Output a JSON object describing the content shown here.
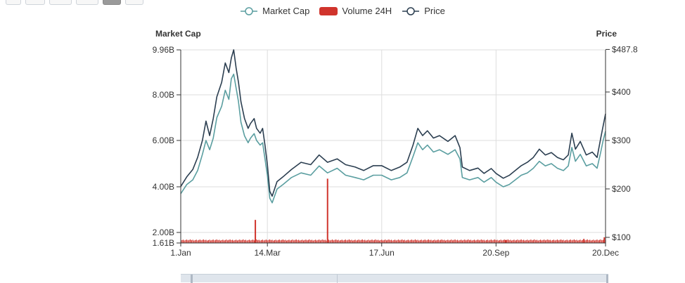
{
  "zoom_buttons": [
    {
      "name": "zoom-button-1",
      "width": 22,
      "active": false
    },
    {
      "name": "zoom-button-2",
      "width": 28,
      "active": false
    },
    {
      "name": "zoom-button-3",
      "width": 32,
      "active": false
    },
    {
      "name": "zoom-button-4",
      "width": 32,
      "active": false
    },
    {
      "name": "zoom-button-5",
      "width": 26,
      "active": true
    },
    {
      "name": "zoom-button-6",
      "width": 26,
      "active": false
    }
  ],
  "legend": {
    "market_cap": "Market Cap",
    "volume": "Volume 24H",
    "price": "Price"
  },
  "colors": {
    "market_cap": "#5a9ea0",
    "volume": "#d0342c",
    "price": "#2b3e50",
    "grid": "#dddddd",
    "axis": "#333333"
  },
  "chart_data": {
    "type": "line",
    "left_axis": {
      "title": "Market Cap",
      "ticks": [
        "9.96B",
        "8.00B",
        "6.00B",
        "4.00B",
        "2.00B",
        "1.61B"
      ],
      "tick_values": [
        9.96,
        8.0,
        6.0,
        4.0,
        2.0,
        1.61
      ],
      "ylim": [
        1.61,
        9.96
      ]
    },
    "right_axis": {
      "title": "Price",
      "ticks": [
        "$487.8",
        "$400",
        "$300",
        "$200",
        "$100"
      ],
      "tick_values": [
        487.8,
        400,
        300,
        200,
        100
      ]
    },
    "x_axis": {
      "ticks": [
        "1.Jan",
        "14.Mar",
        "17.Jun",
        "20.Sep",
        "20.Dec"
      ],
      "tick_positions": [
        0,
        72,
        167,
        262,
        353
      ],
      "range": [
        0,
        353
      ]
    },
    "series": [
      {
        "name": "Market Cap",
        "axis": "left",
        "points": [
          [
            0,
            3.7
          ],
          [
            5,
            4.1
          ],
          [
            10,
            4.3
          ],
          [
            14,
            4.7
          ],
          [
            18,
            5.4
          ],
          [
            21,
            6.0
          ],
          [
            24,
            5.6
          ],
          [
            27,
            6.1
          ],
          [
            30,
            7.0
          ],
          [
            34,
            7.5
          ],
          [
            37,
            8.2
          ],
          [
            40,
            7.8
          ],
          [
            42,
            8.7
          ],
          [
            44,
            8.9
          ],
          [
            46,
            8.3
          ],
          [
            48,
            7.7
          ],
          [
            50,
            6.8
          ],
          [
            53,
            6.2
          ],
          [
            56,
            5.9
          ],
          [
            58,
            6.1
          ],
          [
            61,
            6.3
          ],
          [
            63,
            6.0
          ],
          [
            66,
            5.8
          ],
          [
            68,
            5.9
          ],
          [
            70,
            5.2
          ],
          [
            72,
            4.5
          ],
          [
            74,
            3.5
          ],
          [
            76,
            3.3
          ],
          [
            80,
            3.9
          ],
          [
            85,
            4.1
          ],
          [
            92,
            4.4
          ],
          [
            100,
            4.6
          ],
          [
            108,
            4.5
          ],
          [
            115,
            4.9
          ],
          [
            122,
            4.6
          ],
          [
            130,
            4.8
          ],
          [
            137,
            4.5
          ],
          [
            145,
            4.4
          ],
          [
            152,
            4.3
          ],
          [
            160,
            4.5
          ],
          [
            167,
            4.5
          ],
          [
            175,
            4.3
          ],
          [
            182,
            4.4
          ],
          [
            188,
            4.6
          ],
          [
            193,
            5.3
          ],
          [
            197,
            5.9
          ],
          [
            201,
            5.6
          ],
          [
            205,
            5.8
          ],
          [
            210,
            5.5
          ],
          [
            215,
            5.6
          ],
          [
            222,
            5.4
          ],
          [
            228,
            5.6
          ],
          [
            232,
            5.2
          ],
          [
            234,
            4.4
          ],
          [
            240,
            4.3
          ],
          [
            247,
            4.4
          ],
          [
            252,
            4.2
          ],
          [
            258,
            4.4
          ],
          [
            262,
            4.2
          ],
          [
            268,
            4.0
          ],
          [
            273,
            4.1
          ],
          [
            278,
            4.3
          ],
          [
            283,
            4.5
          ],
          [
            288,
            4.6
          ],
          [
            293,
            4.8
          ],
          [
            298,
            5.1
          ],
          [
            303,
            4.9
          ],
          [
            308,
            5.0
          ],
          [
            313,
            4.8
          ],
          [
            318,
            4.7
          ],
          [
            322,
            4.9
          ],
          [
            325,
            5.7
          ],
          [
            328,
            5.1
          ],
          [
            332,
            5.4
          ],
          [
            337,
            4.9
          ],
          [
            342,
            5.0
          ],
          [
            346,
            4.8
          ],
          [
            349,
            5.5
          ],
          [
            351,
            6.0
          ],
          [
            353,
            6.4
          ]
        ]
      },
      {
        "name": "Price",
        "axis": "right",
        "points": [
          [
            0,
            205
          ],
          [
            5,
            225
          ],
          [
            10,
            240
          ],
          [
            14,
            265
          ],
          [
            18,
            300
          ],
          [
            21,
            340
          ],
          [
            24,
            310
          ],
          [
            27,
            345
          ],
          [
            30,
            390
          ],
          [
            34,
            420
          ],
          [
            37,
            460
          ],
          [
            40,
            440
          ],
          [
            42,
            470
          ],
          [
            44,
            487
          ],
          [
            46,
            450
          ],
          [
            48,
            420
          ],
          [
            50,
            380
          ],
          [
            53,
            345
          ],
          [
            56,
            325
          ],
          [
            58,
            335
          ],
          [
            61,
            345
          ],
          [
            63,
            325
          ],
          [
            66,
            315
          ],
          [
            68,
            325
          ],
          [
            70,
            290
          ],
          [
            72,
            250
          ],
          [
            74,
            195
          ],
          [
            76,
            185
          ],
          [
            80,
            215
          ],
          [
            85,
            225
          ],
          [
            92,
            240
          ],
          [
            100,
            255
          ],
          [
            108,
            250
          ],
          [
            115,
            270
          ],
          [
            122,
            255
          ],
          [
            130,
            262
          ],
          [
            137,
            250
          ],
          [
            145,
            245
          ],
          [
            152,
            238
          ],
          [
            160,
            248
          ],
          [
            167,
            248
          ],
          [
            175,
            238
          ],
          [
            182,
            245
          ],
          [
            188,
            255
          ],
          [
            193,
            290
          ],
          [
            197,
            325
          ],
          [
            201,
            310
          ],
          [
            205,
            320
          ],
          [
            210,
            305
          ],
          [
            215,
            310
          ],
          [
            222,
            298
          ],
          [
            228,
            310
          ],
          [
            232,
            285
          ],
          [
            234,
            245
          ],
          [
            240,
            238
          ],
          [
            247,
            243
          ],
          [
            252,
            232
          ],
          [
            258,
            242
          ],
          [
            262,
            232
          ],
          [
            268,
            222
          ],
          [
            273,
            228
          ],
          [
            278,
            238
          ],
          [
            283,
            248
          ],
          [
            288,
            255
          ],
          [
            293,
            265
          ],
          [
            298,
            282
          ],
          [
            303,
            270
          ],
          [
            308,
            275
          ],
          [
            313,
            265
          ],
          [
            318,
            260
          ],
          [
            322,
            270
          ],
          [
            325,
            315
          ],
          [
            328,
            282
          ],
          [
            332,
            298
          ],
          [
            337,
            270
          ],
          [
            342,
            276
          ],
          [
            346,
            265
          ],
          [
            349,
            305
          ],
          [
            351,
            330
          ],
          [
            353,
            355
          ]
        ]
      },
      {
        "name": "Volume 24H",
        "type": "bar",
        "axis": "left",
        "baseline": 1.61,
        "typical_top": 1.7,
        "spikes": [
          [
            62,
            2.55
          ],
          [
            122,
            4.35
          ],
          [
            270,
            1.72
          ],
          [
            335,
            1.76
          ],
          [
            352,
            1.82
          ]
        ]
      }
    ],
    "grid": true,
    "legend_position": "top-center"
  }
}
